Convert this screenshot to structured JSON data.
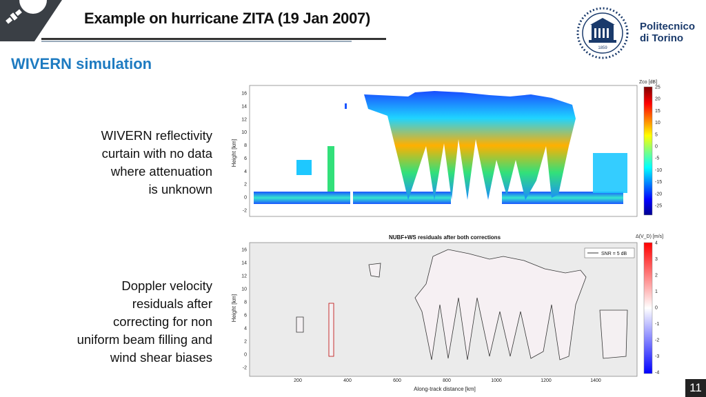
{
  "header": {
    "title": "Example on hurricane ZITA (19 Jan 2007)",
    "institution_line1": "Politecnico",
    "institution_line2": "di Torino",
    "founded_year": "1859"
  },
  "section_title": "WIVERN simulation",
  "captions": {
    "reflectivity": [
      "WIVERN reflectivity",
      "curtain with no data",
      "where attenuation",
      "is unknown"
    ],
    "doppler": [
      "Doppler velocity",
      "residuals after",
      "correcting for non",
      "uniform beam filling and",
      "wind shear biases"
    ]
  },
  "figure_top": {
    "colorbar_label": "Zco [dB]",
    "ylabel": "Height [km]",
    "yticks": [
      "16",
      "14",
      "12",
      "10",
      "8",
      "6",
      "4",
      "2",
      "0",
      "-2"
    ],
    "colorbar_ticks": [
      "25",
      "20",
      "15",
      "10",
      "5",
      "0",
      "-5",
      "-10",
      "-15",
      "-20",
      "-25"
    ]
  },
  "figure_bottom": {
    "title": "NUBF+WS residuals after both corrections",
    "colorbar_label": "Δ(V_D) [m/s]",
    "ylabel": "Height [km]",
    "xlabel": "Along-track distance [km]",
    "legend": "SNR = 5 dB",
    "yticks": [
      "16",
      "14",
      "12",
      "10",
      "8",
      "6",
      "4",
      "2",
      "0",
      "-2"
    ],
    "xticks": [
      "200",
      "400",
      "600",
      "800",
      "1000",
      "1200",
      "1400"
    ],
    "colorbar_ticks": [
      "4",
      "3",
      "2",
      "1",
      "0",
      "-1",
      "-2",
      "-3",
      "-4"
    ]
  },
  "page_number": "11"
}
